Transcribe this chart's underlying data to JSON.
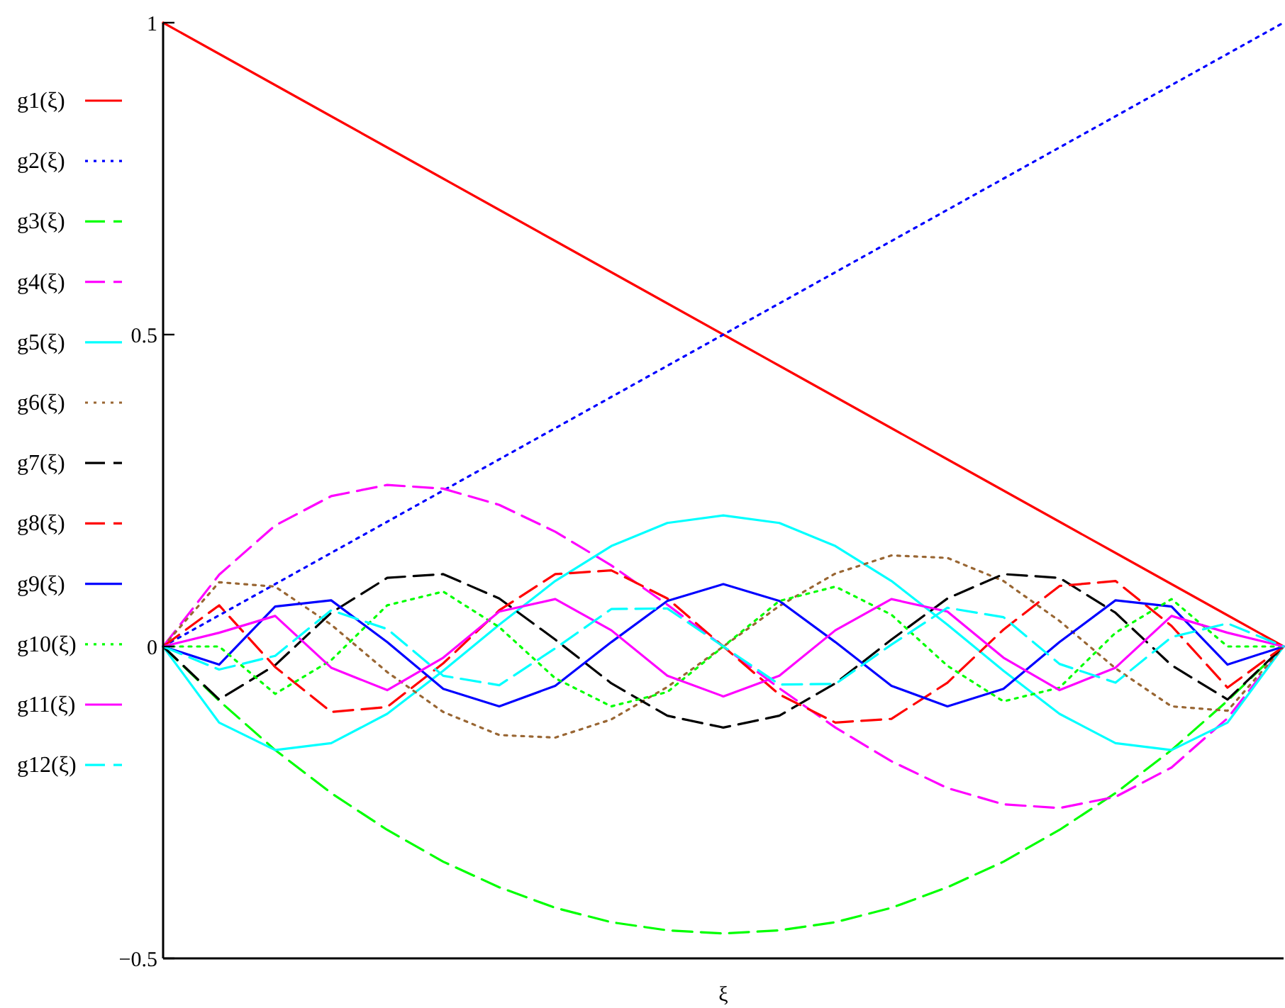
{
  "chart_data": {
    "type": "line",
    "xlabel": "ξ",
    "categories": [
      null,
      null,
      null,
      null,
      null,
      null,
      null,
      null,
      null,
      null,
      null,
      null,
      null,
      null,
      null,
      null,
      null,
      null,
      null,
      null,
      null
    ],
    "ylim": [
      -0.5,
      1
    ],
    "yticks": [
      -0.5,
      0,
      0.5,
      1
    ],
    "tick_labels": "y",
    "grid": false,
    "legend": "left",
    "marker": "none",
    "series": [
      {
        "name": "g1(ξ)",
        "color": "#ff0000",
        "line_style": "solid",
        "values": [
          1,
          0.95,
          0.9,
          0.85,
          0.8,
          0.75,
          0.7,
          0.65,
          0.6,
          0.55,
          0.5,
          0.45,
          0.4,
          0.35,
          0.3,
          0.25,
          0.2,
          0.15,
          0.1,
          0.05,
          0
        ]
      },
      {
        "name": "g2(ξ)",
        "color": "#0000ff",
        "line_style": "dotted",
        "values": [
          0,
          0.05,
          0.1,
          0.15,
          0.2,
          0.25,
          0.3,
          0.35,
          0.4,
          0.45,
          0.5,
          0.55,
          0.6,
          0.65,
          0.7,
          0.75,
          0.8,
          0.85,
          0.9,
          0.95,
          1
        ]
      },
      {
        "name": "g3(ξ)",
        "color": "#00ff00",
        "line_style": "dashed",
        "values": [
          0,
          -0.087,
          -0.166,
          -0.235,
          -0.294,
          -0.345,
          -0.386,
          -0.419,
          -0.442,
          -0.455,
          -0.46,
          -0.455,
          -0.442,
          -0.419,
          -0.386,
          -0.345,
          -0.294,
          -0.235,
          -0.166,
          -0.087,
          0
        ]
      },
      {
        "name": "g4(ξ)",
        "color": "#ff00ff",
        "line_style": "dashed",
        "values": [
          0,
          0.115,
          0.194,
          0.241,
          0.259,
          0.253,
          0.227,
          0.184,
          0.13,
          0.067,
          0,
          -0.067,
          -0.13,
          -0.184,
          -0.227,
          -0.253,
          -0.259,
          -0.241,
          -0.194,
          -0.115,
          0
        ]
      },
      {
        "name": "g5(ξ)",
        "color": "#00ffff",
        "line_style": "solid",
        "values": [
          0,
          -0.122,
          -0.166,
          -0.155,
          -0.108,
          -0.039,
          0.035,
          0.105,
          0.161,
          0.198,
          0.21,
          0.198,
          0.161,
          0.105,
          0.035,
          -0.039,
          -0.108,
          -0.155,
          -0.166,
          -0.122,
          0
        ]
      },
      {
        "name": "g6(ξ)",
        "color": "#996633",
        "line_style": "dotted",
        "values": [
          0,
          0.103,
          0.096,
          0.035,
          -0.041,
          -0.105,
          -0.142,
          -0.146,
          -0.117,
          -0.065,
          0,
          0.065,
          0.117,
          0.146,
          0.142,
          0.105,
          0.041,
          -0.035,
          -0.096,
          -0.103,
          0
        ]
      },
      {
        "name": "g7(ξ)",
        "color": "#000000",
        "line_style": "dashed",
        "values": [
          0,
          -0.085,
          -0.03,
          0.054,
          0.11,
          0.116,
          0.077,
          0.011,
          -0.059,
          -0.111,
          -0.13,
          -0.111,
          -0.059,
          0.011,
          0.077,
          0.116,
          0.11,
          0.054,
          -0.03,
          -0.085,
          0
        ]
      },
      {
        "name": "g8(ξ)",
        "color": "#ff0000",
        "line_style": "dashed",
        "values": [
          0,
          0.066,
          -0.033,
          -0.105,
          -0.097,
          -0.027,
          0.058,
          0.116,
          0.122,
          0.077,
          0,
          -0.077,
          -0.122,
          -0.116,
          -0.058,
          0.027,
          0.097,
          0.105,
          0.033,
          -0.066,
          0
        ]
      },
      {
        "name": "g9(ξ)",
        "color": "#0000ff",
        "line_style": "solid",
        "values": [
          0,
          -0.029,
          0.064,
          0.074,
          0.007,
          -0.068,
          -0.096,
          -0.063,
          0.007,
          0.073,
          0.1,
          0.073,
          0.007,
          -0.063,
          -0.096,
          -0.068,
          0.007,
          0.074,
          0.064,
          -0.029,
          0
        ]
      },
      {
        "name": "g10(ξ)",
        "color": "#00ff00",
        "line_style": "dotted",
        "values": [
          0,
          0,
          -0.076,
          -0.022,
          0.066,
          0.088,
          0.031,
          -0.051,
          -0.096,
          -0.073,
          0,
          0.073,
          0.096,
          0.051,
          -0.031,
          -0.088,
          -0.066,
          0.022,
          0.076,
          0,
          0
        ]
      },
      {
        "name": "g11(ξ)",
        "color": "#ff00ff",
        "line_style": "solid",
        "values": [
          0,
          0.022,
          0.049,
          -0.034,
          -0.07,
          -0.018,
          0.056,
          0.076,
          0.026,
          -0.047,
          -0.08,
          -0.047,
          0.026,
          0.076,
          0.056,
          -0.018,
          -0.07,
          -0.034,
          0.049,
          0.022,
          0
        ]
      },
      {
        "name": "g12(ξ)",
        "color": "#00ffff",
        "line_style": "dashed",
        "values": [
          0,
          -0.037,
          -0.015,
          0.058,
          0.028,
          -0.047,
          -0.062,
          -0.003,
          0.06,
          0.061,
          0,
          -0.061,
          -0.06,
          0.003,
          0.062,
          0.047,
          -0.028,
          -0.058,
          0.015,
          0.037,
          0
        ]
      }
    ]
  }
}
